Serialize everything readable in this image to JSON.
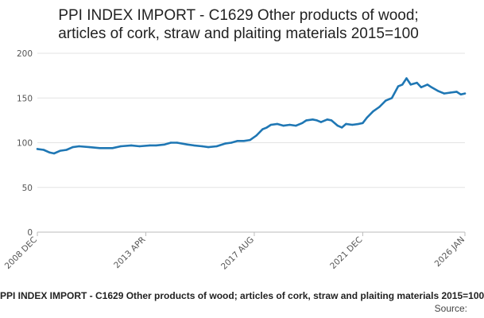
{
  "chart_data": {
    "type": "line",
    "title_lines": [
      "PPI INDEX IMPORT - C1629 Other products of wood;",
      "articles of cork, straw and plaiting materials 2015=100"
    ],
    "xlabel": "",
    "ylabel": "",
    "ylim": [
      0,
      200
    ],
    "yticks": [
      0,
      50,
      100,
      150,
      200
    ],
    "xlim": [
      "2008-12",
      "2026-01"
    ],
    "xticks": [
      "2008 DEC",
      "2013 APR",
      "2017 AUG",
      "2021 DEC",
      "2026 JAN"
    ],
    "grid": true,
    "legend": "bottom",
    "color": "#1f77b4",
    "series": [
      {
        "name": "PPI INDEX IMPORT - C1629 Other products of wood; articles of cork, straw and plaiting materials 2015=100",
        "points": [
          [
            "2008-12",
            93
          ],
          [
            "2009-03",
            92
          ],
          [
            "2009-06",
            89
          ],
          [
            "2009-08",
            88
          ],
          [
            "2009-11",
            91
          ],
          [
            "2010-02",
            92
          ],
          [
            "2010-05",
            95
          ],
          [
            "2010-08",
            96
          ],
          [
            "2011-01",
            95
          ],
          [
            "2011-06",
            94
          ],
          [
            "2011-12",
            94
          ],
          [
            "2012-04",
            96
          ],
          [
            "2012-09",
            97
          ],
          [
            "2013-01",
            96
          ],
          [
            "2013-06",
            97
          ],
          [
            "2013-09",
            97
          ],
          [
            "2014-01",
            98
          ],
          [
            "2014-04",
            100
          ],
          [
            "2014-07",
            100
          ],
          [
            "2014-12",
            98
          ],
          [
            "2015-03",
            97
          ],
          [
            "2015-07",
            96
          ],
          [
            "2015-10",
            95
          ],
          [
            "2016-02",
            96
          ],
          [
            "2016-06",
            99
          ],
          [
            "2016-09",
            100
          ],
          [
            "2016-12",
            102
          ],
          [
            "2017-03",
            102
          ],
          [
            "2017-06",
            103
          ],
          [
            "2017-09",
            108
          ],
          [
            "2017-12",
            115
          ],
          [
            "2018-02",
            117
          ],
          [
            "2018-04",
            120
          ],
          [
            "2018-07",
            121
          ],
          [
            "2018-10",
            119
          ],
          [
            "2019-01",
            120
          ],
          [
            "2019-04",
            119
          ],
          [
            "2019-07",
            122
          ],
          [
            "2019-09",
            125
          ],
          [
            "2019-12",
            126
          ],
          [
            "2020-02",
            125
          ],
          [
            "2020-04",
            123
          ],
          [
            "2020-07",
            126
          ],
          [
            "2020-09",
            125
          ],
          [
            "2020-12",
            119
          ],
          [
            "2021-02",
            117
          ],
          [
            "2021-04",
            121
          ],
          [
            "2021-07",
            120
          ],
          [
            "2021-10",
            121
          ],
          [
            "2021-12",
            122
          ],
          [
            "2022-02",
            128
          ],
          [
            "2022-05",
            135
          ],
          [
            "2022-08",
            140
          ],
          [
            "2022-11",
            147
          ],
          [
            "2023-02",
            150
          ],
          [
            "2023-05",
            163
          ],
          [
            "2023-07",
            165
          ],
          [
            "2023-09",
            172
          ],
          [
            "2023-11",
            165
          ],
          [
            "2024-02",
            167
          ],
          [
            "2024-04",
            162
          ],
          [
            "2024-07",
            165
          ],
          [
            "2024-09",
            162
          ],
          [
            "2024-12",
            158
          ],
          [
            "2025-03",
            155
          ],
          [
            "2025-06",
            156
          ],
          [
            "2025-09",
            157
          ],
          [
            "2025-11",
            154
          ],
          [
            "2026-01",
            155
          ]
        ]
      }
    ],
    "source_label": "Source:"
  }
}
